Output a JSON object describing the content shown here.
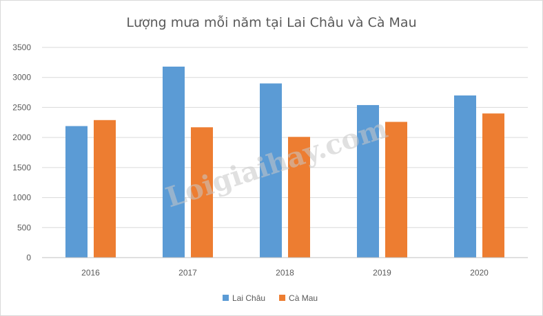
{
  "chart_data": {
    "type": "bar",
    "title": "Lượng mưa mỗi năm tại Lai Châu và Cà Mau",
    "categories": [
      "2016",
      "2017",
      "2018",
      "2019",
      "2020"
    ],
    "series": [
      {
        "name": "Lai Châu",
        "color": "#5b9bd5",
        "values": [
          2190,
          3180,
          2900,
          2540,
          2700
        ]
      },
      {
        "name": "Cà Mau",
        "color": "#ed7d31",
        "values": [
          2290,
          2170,
          2010,
          2260,
          2400
        ]
      }
    ],
    "ylim": [
      0,
      3500
    ],
    "yticks": [
      0,
      500,
      1000,
      1500,
      2000,
      2500,
      3000,
      3500
    ],
    "grid": true,
    "legend_position": "bottom"
  },
  "watermark": "Loigiaihay.com"
}
